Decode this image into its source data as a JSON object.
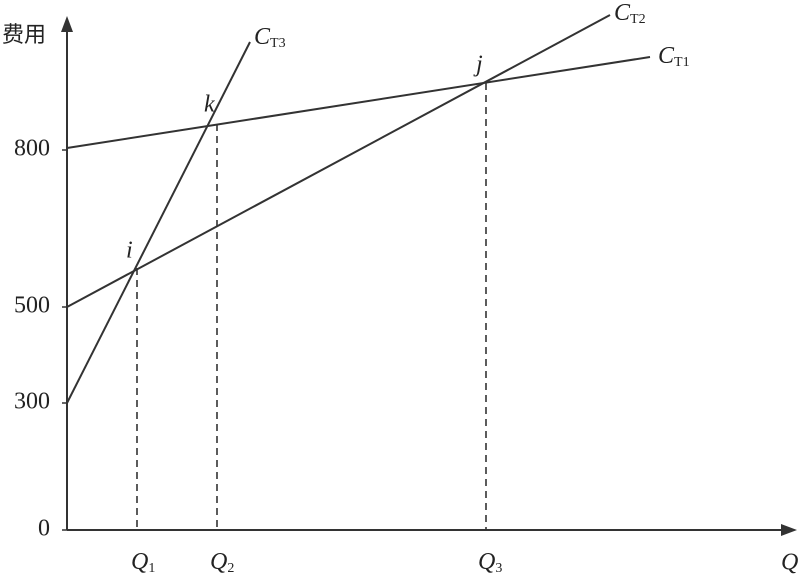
{
  "y_axis": {
    "label": "费用",
    "ticks": [
      0,
      300,
      500,
      800
    ]
  },
  "x_axis": {
    "label": "Q",
    "ticks": [
      {
        "main": "Q",
        "sub": "1"
      },
      {
        "main": "Q",
        "sub": "2"
      },
      {
        "main": "Q",
        "sub": "3"
      }
    ]
  },
  "lines": [
    {
      "main": "C",
      "sub": "T1"
    },
    {
      "main": "C",
      "sub": "T2"
    },
    {
      "main": "C",
      "sub": "T3"
    }
  ],
  "points": [
    "i",
    "k",
    "j"
  ]
}
